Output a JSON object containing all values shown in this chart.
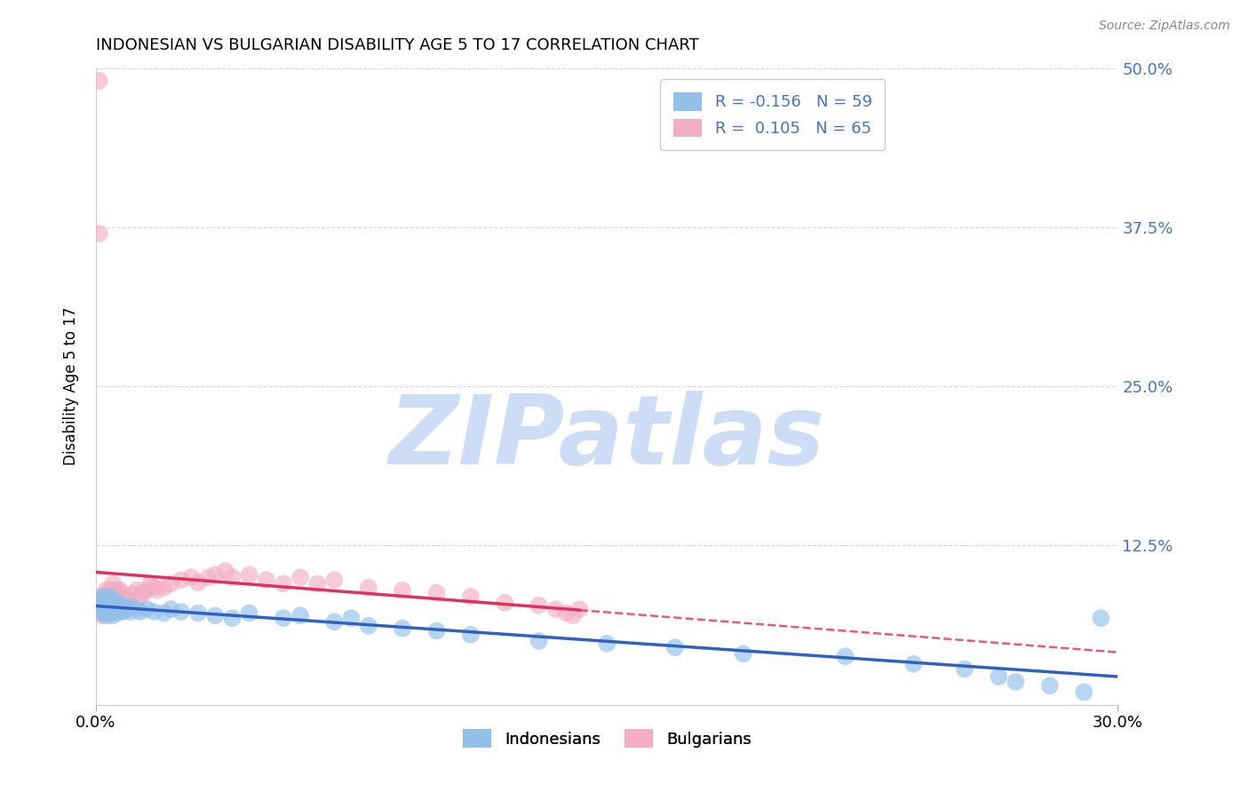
{
  "title": "INDONESIAN VS BULGARIAN DISABILITY AGE 5 TO 17 CORRELATION CHART",
  "source": "Source: ZipAtlas.com",
  "ylabel": "Disability Age 5 to 17",
  "xlim": [
    0.0,
    0.3
  ],
  "ylim": [
    0.0,
    0.5
  ],
  "yticks": [
    0.0,
    0.125,
    0.25,
    0.375,
    0.5
  ],
  "ytick_labels": [
    "",
    "12.5%",
    "25.0%",
    "37.5%",
    "50.0%"
  ],
  "legend_r_blue": "-0.156",
  "legend_n_blue": "59",
  "legend_r_pink": "0.105",
  "legend_n_pink": "65",
  "blue_color": "#92c0ea",
  "pink_color": "#f4aec4",
  "trend_blue_color": "#3060c0",
  "trend_pink_color": "#e03060",
  "watermark": "ZIPatlas",
  "watermark_color": "#ccddf5",
  "background_color": "#ffffff",
  "grid_color": "#cccccc",
  "indonesians_x": [
    0.001,
    0.001,
    0.002,
    0.002,
    0.002,
    0.002,
    0.003,
    0.003,
    0.003,
    0.003,
    0.004,
    0.004,
    0.004,
    0.004,
    0.005,
    0.005,
    0.005,
    0.005,
    0.006,
    0.006,
    0.006,
    0.007,
    0.007,
    0.008,
    0.008,
    0.009,
    0.01,
    0.01,
    0.012,
    0.013,
    0.015,
    0.017,
    0.02,
    0.022,
    0.025,
    0.03,
    0.035,
    0.04,
    0.045,
    0.055,
    0.06,
    0.07,
    0.075,
    0.08,
    0.09,
    0.1,
    0.11,
    0.13,
    0.15,
    0.17,
    0.19,
    0.22,
    0.24,
    0.255,
    0.265,
    0.27,
    0.28,
    0.29,
    0.295
  ],
  "indonesians_y": [
    0.075,
    0.08,
    0.072,
    0.078,
    0.082,
    0.085,
    0.07,
    0.075,
    0.08,
    0.083,
    0.072,
    0.076,
    0.08,
    0.085,
    0.07,
    0.075,
    0.078,
    0.082,
    0.072,
    0.076,
    0.08,
    0.074,
    0.078,
    0.073,
    0.077,
    0.075,
    0.073,
    0.077,
    0.075,
    0.073,
    0.075,
    0.073,
    0.072,
    0.075,
    0.073,
    0.072,
    0.07,
    0.068,
    0.072,
    0.068,
    0.07,
    0.065,
    0.068,
    0.062,
    0.06,
    0.058,
    0.055,
    0.05,
    0.048,
    0.045,
    0.04,
    0.038,
    0.032,
    0.028,
    0.022,
    0.018,
    0.015,
    0.01,
    0.068
  ],
  "bulgarians_x": [
    0.001,
    0.001,
    0.002,
    0.002,
    0.002,
    0.002,
    0.002,
    0.003,
    0.003,
    0.003,
    0.003,
    0.003,
    0.004,
    0.004,
    0.004,
    0.004,
    0.005,
    0.005,
    0.005,
    0.005,
    0.005,
    0.006,
    0.006,
    0.006,
    0.007,
    0.007,
    0.007,
    0.008,
    0.008,
    0.009,
    0.009,
    0.01,
    0.011,
    0.012,
    0.013,
    0.014,
    0.015,
    0.016,
    0.017,
    0.018,
    0.02,
    0.022,
    0.025,
    0.028,
    0.03,
    0.033,
    0.035,
    0.038,
    0.04,
    0.045,
    0.05,
    0.055,
    0.06,
    0.065,
    0.07,
    0.08,
    0.09,
    0.1,
    0.11,
    0.12,
    0.13,
    0.135,
    0.138,
    0.14,
    0.142
  ],
  "bulgarians_y": [
    0.49,
    0.37,
    0.07,
    0.075,
    0.078,
    0.08,
    0.085,
    0.072,
    0.076,
    0.08,
    0.085,
    0.09,
    0.075,
    0.08,
    0.085,
    0.09,
    0.075,
    0.08,
    0.085,
    0.09,
    0.095,
    0.08,
    0.085,
    0.09,
    0.08,
    0.085,
    0.09,
    0.082,
    0.087,
    0.08,
    0.085,
    0.083,
    0.087,
    0.09,
    0.085,
    0.088,
    0.09,
    0.095,
    0.092,
    0.09,
    0.092,
    0.095,
    0.098,
    0.1,
    0.096,
    0.1,
    0.102,
    0.105,
    0.1,
    0.102,
    0.098,
    0.095,
    0.1,
    0.095,
    0.098,
    0.092,
    0.09,
    0.088,
    0.085,
    0.08,
    0.078,
    0.075,
    0.072,
    0.07,
    0.075
  ]
}
